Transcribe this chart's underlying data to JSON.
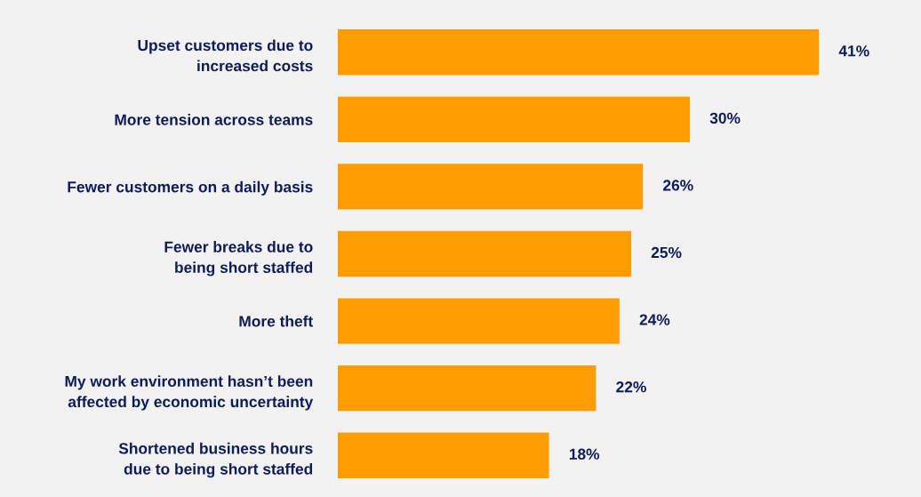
{
  "chart_data": {
    "type": "bar",
    "orientation": "horizontal",
    "categories": [
      "Upset customers due to\nincreased costs",
      "More tension across teams",
      "Fewer customers on a daily basis",
      "Fewer breaks due to\nbeing short staffed",
      "More theft",
      "My work environment hasn’t been\naffected by economic uncertainty",
      "Shortened business hours\ndue to being short staffed"
    ],
    "values": [
      41,
      30,
      26,
      25,
      24,
      22,
      18
    ],
    "value_labels": [
      "41%",
      "30%",
      "26%",
      "25%",
      "24%",
      "22%",
      "18%"
    ],
    "color": "#ff9c00",
    "xlim": [
      0,
      49.7
    ],
    "tick_labels": "y",
    "grid": false,
    "legend": false
  }
}
